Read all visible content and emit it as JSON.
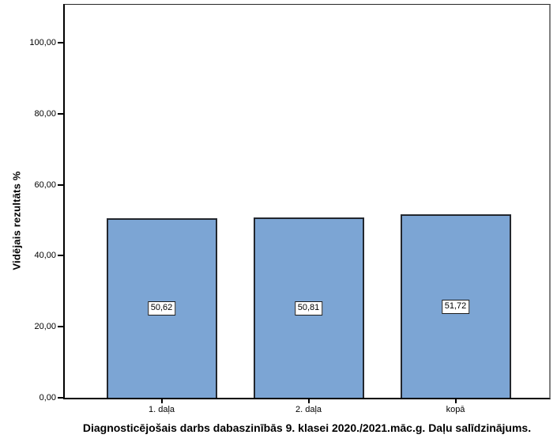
{
  "chart_data": {
    "type": "bar",
    "title": "Diagnosticējošais darbs dabaszinībās 9. klasei 2020./2021.māc.g. Daļu salīdzinājums.",
    "ylabel": "Vidējais rezultāts %",
    "xlabel": "",
    "categories": [
      "1. daļa",
      "2. daļa",
      "kopā"
    ],
    "values": [
      50.62,
      50.81,
      51.72
    ],
    "value_labels": [
      "50,62",
      "50,81",
      "51,72"
    ],
    "yticks": [
      0,
      20,
      40,
      60,
      80,
      100
    ],
    "ytick_labels": [
      "0,00",
      "20,00",
      "40,00",
      "60,00",
      "80,00",
      "100,00"
    ],
    "ylim": [
      0,
      111.4
    ],
    "grid": false,
    "legend": "none",
    "bar_color": "#7CA5D4",
    "bar_border_color": "#23272E",
    "axis_color": "#000000",
    "background_color": "#FFFFFF"
  }
}
